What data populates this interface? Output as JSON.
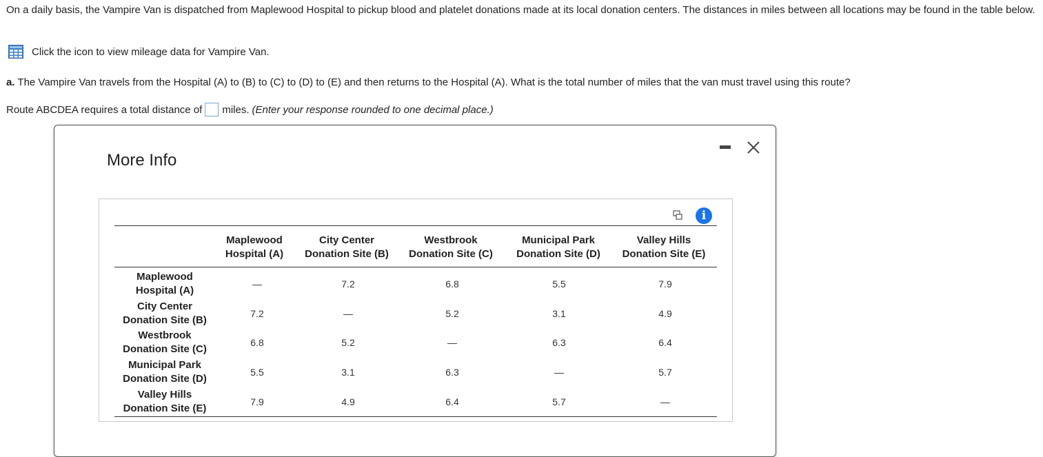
{
  "intro_text": "On a daily basis, the Vampire Van is dispatched from Maplewood Hospital to pickup blood and platelet donations made at its local donation centers. The distances in miles between all locations may be found in the table below.",
  "icon_link_text": "Click the icon to view mileage data for Vampire Van.",
  "question": {
    "label": "a.",
    "text": "The Vampire Van travels from the Hospital (A) to (B) to (C) to (D) to (E) and then returns to the Hospital (A). What is the total number of miles that the van must travel using this route?"
  },
  "answer": {
    "prefix": "Route ABCDEA requires a total distance of",
    "value": "",
    "suffix": "miles.",
    "instruction": "(Enter your response rounded to one decimal place.)"
  },
  "modal": {
    "title": "More Info"
  },
  "table": {
    "columns": [
      {
        "line1": "Maplewood",
        "line2": "Hospital (A)"
      },
      {
        "line1": "City Center",
        "line2": "Donation Site (B)"
      },
      {
        "line1": "Westbrook",
        "line2": "Donation Site (C)"
      },
      {
        "line1": "Municipal Park",
        "line2": "Donation Site (D)"
      },
      {
        "line1": "Valley Hills",
        "line2": "Donation Site (E)"
      }
    ],
    "rows": [
      {
        "line1": "Maplewood",
        "line2": "Hospital (A)",
        "values": [
          "—",
          "7.2",
          "6.8",
          "5.5",
          "7.9"
        ]
      },
      {
        "line1": "City Center",
        "line2": "Donation Site (B)",
        "values": [
          "7.2",
          "—",
          "5.2",
          "3.1",
          "4.9"
        ]
      },
      {
        "line1": "Westbrook",
        "line2": "Donation Site (C)",
        "values": [
          "6.8",
          "5.2",
          "—",
          "6.3",
          "6.4"
        ]
      },
      {
        "line1": "Municipal Park",
        "line2": "Donation Site (D)",
        "values": [
          "5.5",
          "3.1",
          "6.3",
          "—",
          "5.7"
        ]
      },
      {
        "line1": "Valley Hills",
        "line2": "Donation Site (E)",
        "values": [
          "7.9",
          "4.9",
          "6.4",
          "5.7",
          "—"
        ]
      }
    ]
  },
  "colors": {
    "accent": "#1a73e8",
    "grid_icon": "#3b7fc4",
    "input_border": "#7aa7d6"
  },
  "icons": {
    "data_table": "grid-table-icon",
    "minimize": "minimize-icon",
    "close": "close-icon",
    "copy": "copy-icon",
    "info": "info-icon",
    "info_glyph": "i"
  }
}
